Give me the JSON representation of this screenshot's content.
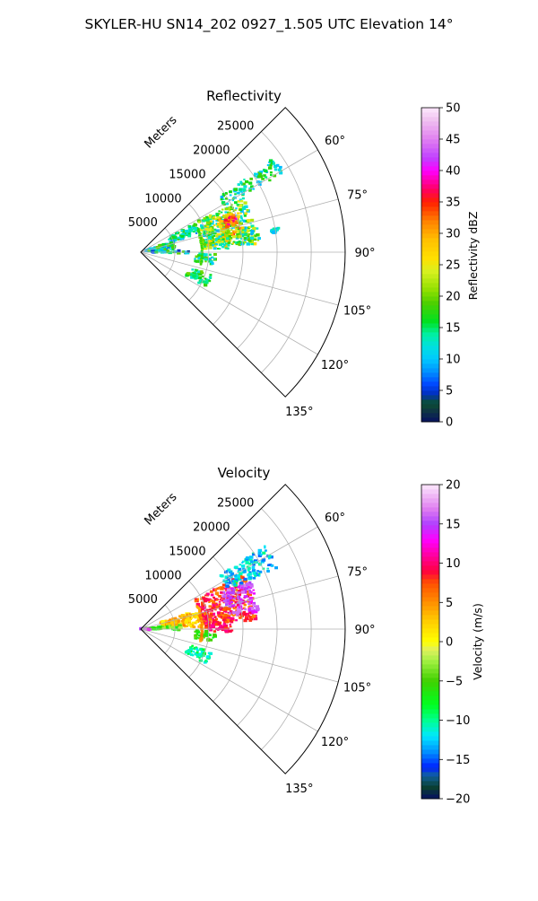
{
  "figure": {
    "suptitle": "SKYLER-HU  SN14_202  0927_1.505 UTC Elevation 14°"
  },
  "chart_data": [
    {
      "type": "polar-sector-radar",
      "title": "Reflectivity",
      "radial_axis_label": "Meters",
      "radial_ticks": [
        5000,
        10000,
        15000,
        20000,
        25000
      ],
      "radial_tick_labels": [
        "5000",
        "10000",
        "15000",
        "20000",
        "25000"
      ],
      "rlim": [
        0,
        30000
      ],
      "azimuth_range_deg": [
        45,
        135
      ],
      "azimuth_ticks": [
        60,
        75,
        90,
        105,
        120,
        135
      ],
      "azimuth_tick_labels": [
        "60°",
        "75°",
        "90°",
        "105°",
        "120°",
        "135°"
      ],
      "grid": true,
      "colorbar": {
        "label": "Reflectivity dBZ",
        "range": [
          0,
          50
        ],
        "ticks": [
          0,
          5,
          10,
          15,
          20,
          25,
          30,
          35,
          40,
          45,
          50
        ],
        "tick_labels": [
          "0",
          "5",
          "10",
          "15",
          "20",
          "25",
          "30",
          "35",
          "40",
          "45",
          "50"
        ],
        "color_stops": [
          {
            "v": 0,
            "c": "#081060"
          },
          {
            "v": 2,
            "c": "#103a40"
          },
          {
            "v": 3,
            "c": "#0a5030"
          },
          {
            "v": 4.5,
            "c": "#0030c0"
          },
          {
            "v": 6,
            "c": "#0048ff"
          },
          {
            "v": 8,
            "c": "#0090ff"
          },
          {
            "v": 10,
            "c": "#00c8ff"
          },
          {
            "v": 12,
            "c": "#00e0e0"
          },
          {
            "v": 14,
            "c": "#00f0a0"
          },
          {
            "v": 16,
            "c": "#00e020"
          },
          {
            "v": 19,
            "c": "#50d000"
          },
          {
            "v": 21,
            "c": "#90e000"
          },
          {
            "v": 24,
            "c": "#d8f020"
          },
          {
            "v": 26,
            "c": "#ffe000"
          },
          {
            "v": 29,
            "c": "#ffc000"
          },
          {
            "v": 32,
            "c": "#ff8000"
          },
          {
            "v": 35,
            "c": "#ff2000"
          },
          {
            "v": 37,
            "c": "#ff0060"
          },
          {
            "v": 40,
            "c": "#ff00ff"
          },
          {
            "v": 42,
            "c": "#c040ff"
          },
          {
            "v": 45,
            "c": "#e080f0"
          },
          {
            "v": 48,
            "c": "#f0c0f0"
          },
          {
            "v": 50,
            "c": "#fce8fc"
          }
        ]
      },
      "echo_regions": [
        {
          "az": [
            62,
            86
          ],
          "r": [
            9000,
            17000
          ],
          "value": 18,
          "var": 9
        },
        {
          "az": [
            66,
            80
          ],
          "r": [
            12000,
            15500
          ],
          "value": 28,
          "var": 8
        },
        {
          "az": [
            68,
            74
          ],
          "r": [
            13000,
            14800
          ],
          "value": 35,
          "var": 5
        },
        {
          "az": [
            78,
            88
          ],
          "r": [
            9000,
            13500
          ],
          "value": 20,
          "var": 10
        },
        {
          "az": [
            78,
            86
          ],
          "r": [
            14500,
            17500
          ],
          "value": 16,
          "var": 8
        },
        {
          "az": [
            62,
            72
          ],
          "r": [
            4500,
            9000
          ],
          "value": 13,
          "var": 6
        },
        {
          "az": [
            72,
            86
          ],
          "r": [
            800,
            5000
          ],
          "value": 14,
          "var": 7
        },
        {
          "az": [
            88,
            92
          ],
          "r": [
            1500,
            7000
          ],
          "value": 12,
          "var": 8
        },
        {
          "az": [
            92,
            100
          ],
          "r": [
            8000,
            11000
          ],
          "value": 14,
          "var": 6
        },
        {
          "az": [
            108,
            118
          ],
          "r": [
            7500,
            11000
          ],
          "value": 16,
          "var": 4
        },
        {
          "az": [
            55,
            61
          ],
          "r": [
            14000,
            24000
          ],
          "value": 14,
          "var": 5
        },
        {
          "az": [
            80,
            82
          ],
          "r": [
            19500,
            20500
          ],
          "value": 12,
          "var": 3
        }
      ],
      "echo_rings": [
        {
          "r": 9000,
          "az": [
            68,
            102
          ],
          "value": 18,
          "var": 3
        }
      ]
    },
    {
      "type": "polar-sector-radar",
      "title": "Velocity",
      "radial_axis_label": "Meters",
      "radial_ticks": [
        5000,
        10000,
        15000,
        20000,
        25000
      ],
      "radial_tick_labels": [
        "5000",
        "10000",
        "15000",
        "20000",
        "25000"
      ],
      "rlim": [
        0,
        30000
      ],
      "azimuth_range_deg": [
        45,
        135
      ],
      "azimuth_ticks": [
        60,
        75,
        90,
        105,
        120,
        135
      ],
      "azimuth_tick_labels": [
        "60°",
        "75°",
        "90°",
        "105°",
        "120°",
        "135°"
      ],
      "grid": true,
      "colorbar": {
        "label": "Velocity (m/s)",
        "range": [
          -20,
          20
        ],
        "ticks": [
          -20,
          -15,
          -10,
          -5,
          0,
          5,
          10,
          15,
          20
        ],
        "tick_labels": [
          "−20",
          "−15",
          "−10",
          "−5",
          "0",
          "5",
          "10",
          "15",
          "20"
        ],
        "color_stops": [
          {
            "v": -20,
            "c": "#081060"
          },
          {
            "v": -18.5,
            "c": "#0a4030"
          },
          {
            "v": -17,
            "c": "#1060a0"
          },
          {
            "v": -16,
            "c": "#0020ff"
          },
          {
            "v": -14,
            "c": "#0090ff"
          },
          {
            "v": -12,
            "c": "#00e8ff"
          },
          {
            "v": -10,
            "c": "#00ff90"
          },
          {
            "v": -8,
            "c": "#00ff20"
          },
          {
            "v": -5,
            "c": "#40d000"
          },
          {
            "v": -2.5,
            "c": "#a0f040"
          },
          {
            "v": -1,
            "c": "#e0f060"
          },
          {
            "v": 0,
            "c": "#ffff00"
          },
          {
            "v": 2.5,
            "c": "#ffd000"
          },
          {
            "v": 5,
            "c": "#ff9000"
          },
          {
            "v": 7.5,
            "c": "#ff5000"
          },
          {
            "v": 9,
            "c": "#ff0040"
          },
          {
            "v": 11,
            "c": "#ff00a0"
          },
          {
            "v": 13,
            "c": "#ff00ff"
          },
          {
            "v": 15,
            "c": "#b040ff"
          },
          {
            "v": 17,
            "c": "#e080f0"
          },
          {
            "v": 20,
            "c": "#fce8fc"
          }
        ]
      },
      "echo_regions": [
        {
          "az": [
            62,
            86
          ],
          "r": [
            9000,
            17000
          ],
          "value": 8,
          "var": 3
        },
        {
          "az": [
            66,
            82
          ],
          "r": [
            13000,
            17500
          ],
          "value": 15,
          "var": 2
        },
        {
          "az": [
            56,
            66
          ],
          "r": [
            14000,
            22000
          ],
          "value": -12,
          "var": 3
        },
        {
          "az": [
            72,
            88
          ],
          "r": [
            3000,
            9000
          ],
          "value": 3,
          "var": 3
        },
        {
          "az": [
            84,
            92
          ],
          "r": [
            800,
            6000
          ],
          "value": -5,
          "var": 3
        },
        {
          "az": [
            84,
            92
          ],
          "r": [
            9500,
            13500
          ],
          "value": 9,
          "var": 2
        },
        {
          "az": [
            92,
            100
          ],
          "r": [
            8000,
            11000
          ],
          "value": -6,
          "var": 2
        },
        {
          "az": [
            108,
            118
          ],
          "r": [
            7500,
            11000
          ],
          "value": -10,
          "var": 2
        },
        {
          "az": [
            90,
            100
          ],
          "r": [
            0,
            1500
          ],
          "value": 14,
          "var": 3
        }
      ],
      "echo_rings": [
        {
          "r": 9000,
          "az": [
            68,
            102
          ],
          "value": 5,
          "var": 1.5
        }
      ]
    }
  ]
}
